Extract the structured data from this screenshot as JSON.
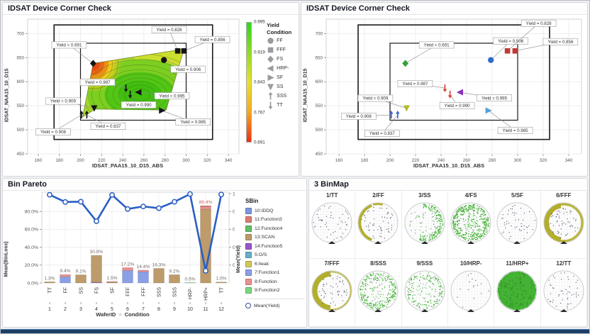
{
  "panels": {
    "corner_contour": {
      "title": "IDSAT Device Corner Check"
    },
    "corner_scatter": {
      "title": "IDSAT Device Corner Check"
    },
    "bin_pareto": {
      "title": "Bin Pareto"
    },
    "binmap": {
      "title": "3 BinMap"
    }
  },
  "chart_data": [
    {
      "id": "corner_check_contour",
      "type": "contour",
      "title": "IDSAT Device Corner Check",
      "xlabel": "IDSAT_PAA15_10_D15_ABS",
      "ylabel": "IDSAT_NAA15_10_D15",
      "xlim": [
        150,
        350
      ],
      "ylim": [
        450,
        730
      ],
      "x_ticks": [
        160,
        180,
        200,
        220,
        240,
        260,
        280,
        300,
        320,
        340
      ],
      "y_ticks": [
        450,
        500,
        550,
        600,
        650,
        700
      ],
      "grid": true,
      "spec_boxes": [
        {
          "x0": 175,
          "x1": 325,
          "y0": 480,
          "y1": 718
        },
        {
          "x0": 200,
          "x1": 300,
          "y0": 520,
          "y1": 680
        }
      ],
      "colorbar": {
        "title": "Yield",
        "tick_labels": [
          "0.995",
          "0.919",
          "0.843",
          "0.767",
          "0.691"
        ],
        "gradient": [
          "#2fd51c",
          "#8edc24",
          "#e8e22a",
          "#f5a81e",
          "#ea3015"
        ]
      },
      "legend": {
        "title": "Condition",
        "items": [
          {
            "label": "FF",
            "marker": "circle"
          },
          {
            "label": "FFF",
            "marker": "square"
          },
          {
            "label": "FS",
            "marker": "diamond"
          },
          {
            "label": "HRP-",
            "marker": "triangle-left"
          },
          {
            "label": "SF",
            "marker": "triangle-right"
          },
          {
            "label": "SS",
            "marker": "triangle-down"
          },
          {
            "label": "SSS",
            "marker": "arrow-up"
          },
          {
            "label": "TT",
            "marker": "arrow-down"
          }
        ]
      },
      "points": [
        {
          "condition": "FS",
          "x": 212,
          "y": 638,
          "yield": 0.691,
          "marker": "diamond",
          "color": "#35a03c",
          "label": "Yield = 0.691"
        },
        {
          "condition": "FF",
          "x": 279,
          "y": 645,
          "yield": 0.906,
          "marker": "circle",
          "color": "#2f6cc8",
          "label": "Yield = 0.906"
        },
        {
          "condition": "FFF",
          "x": 292,
          "y": 664,
          "yield": 0.828,
          "marker": "square",
          "color": "#bf3a35",
          "label": "Yield = 0.828"
        },
        {
          "condition": "FFF",
          "x": 298,
          "y": 664,
          "yield": 0.856,
          "marker": "square",
          "color": "#bf3a35",
          "label": "Yield = 0.856"
        },
        {
          "condition": "TT",
          "x": 243,
          "y": 587,
          "yield": 0.987,
          "marker": "arrow-down",
          "color": "#d84338",
          "label": "Yield = 0.987"
        },
        {
          "condition": "TT",
          "x": 247,
          "y": 574,
          "yield": 0.99,
          "marker": "arrow-down",
          "color": "#d84338",
          "label": "Yield = 0.990"
        },
        {
          "condition": "HRP-",
          "x": 255,
          "y": 578,
          "yield": 0.995,
          "marker": "triangle-left",
          "color": "#8833bb",
          "label": "Yield = 0.995"
        },
        {
          "condition": "SS",
          "x": 213,
          "y": 545,
          "yield": 0.909,
          "marker": "triangle-down",
          "color": "#b6b92b",
          "label": "Yield = 0.909"
        },
        {
          "condition": "SSS",
          "x": 201,
          "y": 531,
          "yield": 0.908,
          "marker": "arrow-up",
          "color": "#3b66d6",
          "label": "Yield = 0.908"
        },
        {
          "condition": "SSS",
          "x": 206,
          "y": 531,
          "yield": 0.837,
          "marker": "arrow-up",
          "color": "#3b66d6",
          "label": "Yield = 0.837"
        },
        {
          "condition": "SF",
          "x": 277,
          "y": 540,
          "yield": 0.985,
          "marker": "triangle-right",
          "color": "#56a0d8",
          "label": "Yield = 0.985"
        }
      ]
    },
    {
      "id": "corner_check_scatter",
      "type": "scatter",
      "title": "IDSAT Device Corner Check",
      "xlabel": "IDSAT_PAA15_10_D15_ABS",
      "ylabel": "IDSAT_NAA15_10_D15",
      "xlim": [
        150,
        350
      ],
      "ylim": [
        450,
        730
      ],
      "x_ticks": [
        160,
        180,
        200,
        220,
        240,
        260,
        280,
        300,
        320,
        340
      ],
      "y_ticks": [
        450,
        500,
        550,
        600,
        650,
        700
      ],
      "grid": true,
      "spec_boxes": [
        {
          "x0": 175,
          "x1": 325,
          "y0": 480,
          "y1": 718
        },
        {
          "x0": 200,
          "x1": 300,
          "y0": 520,
          "y1": 680
        }
      ]
    },
    {
      "id": "bin_pareto",
      "type": "bar",
      "title": "Bin Pareto",
      "xlabel_left": "WaferID",
      "xlabel_sep": "=",
      "xlabel_right": "Condition",
      "ylabel": "Mean(BinLoss)",
      "ylabel_right": "Mean(Yield)",
      "wafer_ids": [
        "1",
        "2",
        "3",
        "4",
        "5",
        "6",
        "7",
        "8",
        "9",
        "10",
        "11",
        "12"
      ],
      "conditions": [
        "TT",
        "FF",
        "SS",
        "FS",
        "SF",
        "FFF",
        "FFF",
        "SSS",
        "SSS",
        "HRP-",
        "HRP+",
        "TT"
      ],
      "bar_labels": [
        "1.3%",
        "9.4%",
        "9.1%",
        "30.9%",
        "1.5%",
        "17.2%",
        "14.4%",
        "16.3%",
        "9.2%",
        "0.5%",
        "86.4%",
        "1.0%"
      ],
      "bar_totals": [
        1.3,
        9.4,
        9.1,
        30.9,
        1.5,
        17.2,
        14.4,
        16.3,
        9.2,
        0.5,
        86.4,
        1.0
      ],
      "segments": [
        [
          [
            "13:SCAN",
            1.3
          ]
        ],
        [
          [
            "7:Function1",
            6.9
          ],
          [
            "8:Function",
            2.5
          ]
        ],
        [
          [
            "13:SCAN",
            9.1
          ]
        ],
        [
          [
            "14:Function5",
            0.7
          ],
          [
            "13:SCAN",
            30.2
          ]
        ],
        [
          [
            "13:SCAN",
            0.9
          ],
          [
            "11:Function3",
            0.6
          ]
        ],
        [
          [
            "7:Function1",
            13.8
          ],
          [
            "8:Function",
            3.4
          ]
        ],
        [
          [
            "7:Function1",
            12.4
          ],
          [
            "8:Function",
            2.0
          ]
        ],
        [
          [
            "13:SCAN",
            16.3
          ]
        ],
        [
          [
            "13:SCAN",
            9.2
          ]
        ],
        [
          [
            "9:Function2",
            0.5
          ]
        ],
        [
          [
            "13:SCAN",
            82.6
          ],
          [
            "8:Function",
            2.6
          ],
          [
            "11:Function3",
            1.2
          ]
        ],
        [
          [
            "13:SCAN",
            1.0
          ]
        ]
      ],
      "yield_line": [
        0.987,
        0.906,
        0.909,
        0.691,
        0.985,
        0.828,
        0.856,
        0.837,
        0.908,
        0.995,
        0.136,
        0.99
      ],
      "y_ticks_left": [
        "0.0%",
        "20.0%",
        "40.0%",
        "60.0%",
        "80.0%"
      ],
      "y_ticks_right": [
        "0.2",
        "0.4",
        "0.6",
        "0.8",
        "1"
      ],
      "legend_title": "SBin",
      "legend_items": [
        {
          "label": "10:IDDQ",
          "color": "#7e96dc"
        },
        {
          "label": "11:Function3",
          "color": "#dd7a70"
        },
        {
          "label": "12:Function4",
          "color": "#63bd65"
        },
        {
          "label": "13:SCAN",
          "color": "#bd9b6a"
        },
        {
          "label": "14:Function5",
          "color": "#9a55cc"
        },
        {
          "label": "5:O/S",
          "color": "#6aaec9"
        },
        {
          "label": "6:Ileak",
          "color": "#cfc85e"
        },
        {
          "label": "7:Function1",
          "color": "#8b9fe6"
        },
        {
          "label": "8:Function",
          "color": "#e89193"
        },
        {
          "label": "9:Function2",
          "color": "#7cd67e"
        }
      ],
      "line_legend": "Mean(Yield)",
      "line_color": "#2a5ec4"
    },
    {
      "id": "binmap",
      "type": "wafer-grid",
      "title": "3 BinMap",
      "wafers": [
        {
          "label": "1/TT",
          "pattern": "sparse"
        },
        {
          "label": "2/FF",
          "pattern": "edge-left-olive"
        },
        {
          "label": "3/SS",
          "pattern": "ring-right-green"
        },
        {
          "label": "4/FS",
          "pattern": "ring-green-thick"
        },
        {
          "label": "5/SF",
          "pattern": "sparse"
        },
        {
          "label": "6/FFF",
          "pattern": "edge-olive-ring"
        },
        {
          "label": "7/FFF",
          "pattern": "edge-left-olive-thick"
        },
        {
          "label": "8/SSS",
          "pattern": "ring-green"
        },
        {
          "label": "9/SSS",
          "pattern": "ring-green-sparse"
        },
        {
          "label": "10/HRP-",
          "pattern": "very-sparse"
        },
        {
          "label": "11/HRP+",
          "pattern": "solid-green"
        },
        {
          "label": "12/TT",
          "pattern": "sparse"
        }
      ],
      "palette": {
        "green": "#44b335",
        "olive": "#b3ae2b",
        "dot": "#4a4a66"
      }
    }
  ]
}
